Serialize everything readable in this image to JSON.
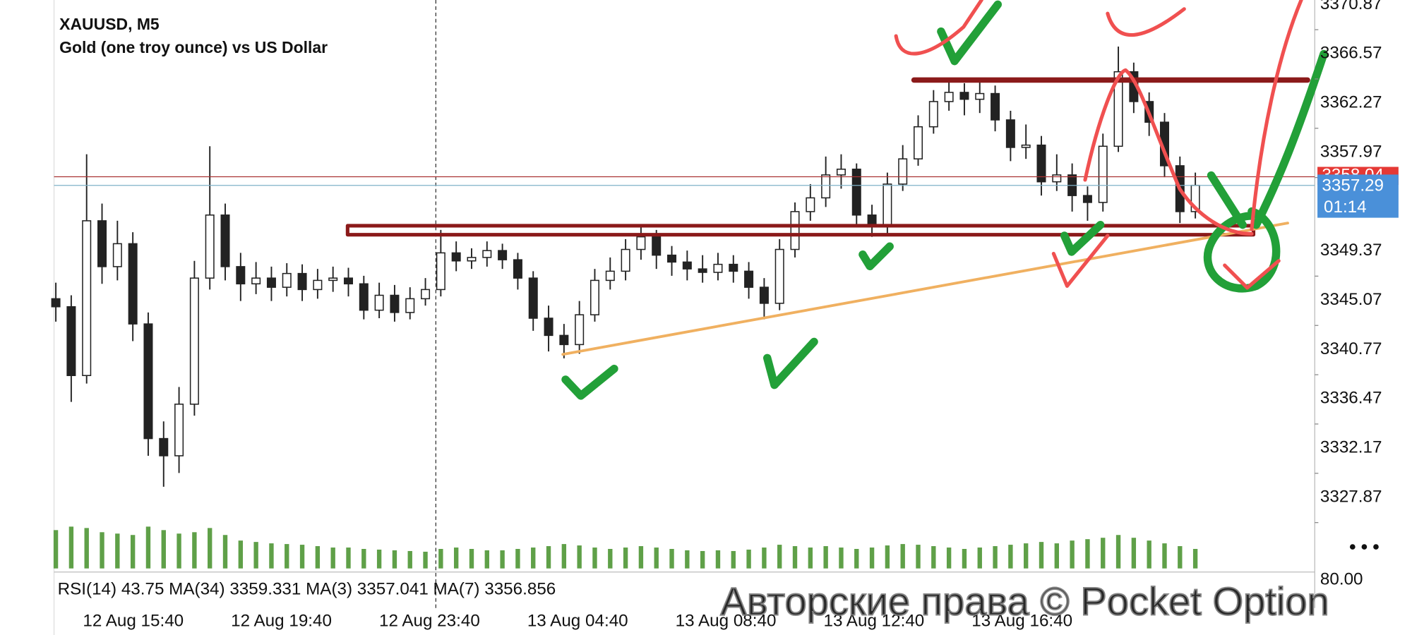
{
  "chart_data": {
    "type": "candlestick",
    "title": "XAUUSD, M5",
    "subtitle": "Gold (one troy ounce) vs US Dollar",
    "color": "#222222",
    "volume_color": "#5fa048",
    "xticks": [
      "12 Aug 15:40",
      "12 Aug 19:40",
      "12 Aug 23:40",
      "13 Aug 04:40",
      "13 Aug 08:40",
      "13 Aug 12:40",
      "13 Aug 16:40"
    ],
    "ylim": [
      3323.87,
      3373.46
    ],
    "yticks": [
      3370.87,
      3366.57,
      3362.27,
      3357.97,
      3349.37,
      3345.07,
      3340.77,
      3336.47,
      3332.17,
      3327.87
    ],
    "open": [
      3347.4,
      3346.7,
      3340.7,
      3354.2,
      3350.2,
      3352.2,
      3345.2,
      3335.2,
      3333.7,
      3338.2,
      3349.2,
      3354.7,
      3350.2,
      3348.7,
      3349.2,
      3348.4,
      3349.6,
      3348.2,
      3349,
      3349.2,
      3348.7,
      3346.4,
      3347.7,
      3346.2,
      3347.4,
      3348.2,
      3351.4,
      3350.7,
      3351,
      3351.6,
      3350.8,
      3349.2,
      3345.7,
      3344.2,
      3343.4,
      3346,
      3349,
      3349.8,
      3351.7,
      3352.8,
      3351.2,
      3350.6,
      3350,
      3349.7,
      3350.4,
      3349.8,
      3348.4,
      3347,
      3351.7,
      3355,
      3356.2,
      3358.2,
      3358.7,
      3354.7,
      3353.8,
      3357.4,
      3359.6,
      3362.4,
      3364.6,
      3365.4,
      3364.8,
      3365.3,
      3363,
      3360.6,
      3360.8,
      3357.6,
      3358.2,
      3356.4,
      3355.8,
      3360.7,
      3367.2,
      3364.6,
      3362.8,
      3359,
      3355
    ],
    "high": [
      3348.8,
      3347.7,
      3360,
      3355.7,
      3354.2,
      3353.2,
      3346.2,
      3336.7,
      3339.7,
      3350.7,
      3360.7,
      3355.7,
      3351.4,
      3350.6,
      3350.2,
      3350.5,
      3350.4,
      3350,
      3350.2,
      3350.1,
      3349.4,
      3348.8,
      3348.6,
      3348.4,
      3349.2,
      3353.4,
      3352.4,
      3351.8,
      3352.4,
      3352.2,
      3351.4,
      3349.8,
      3346.8,
      3345.2,
      3347.2,
      3350,
      3351,
      3352.6,
      3353.8,
      3353.4,
      3352,
      3351.6,
      3351.2,
      3351.4,
      3351.2,
      3350.6,
      3349.2,
      3352.6,
      3355.8,
      3357.4,
      3359.8,
      3360,
      3359.2,
      3355.6,
      3358.4,
      3360.8,
      3363.4,
      3365.6,
      3366.4,
      3366.2,
      3366.4,
      3366,
      3363.8,
      3362.6,
      3361.6,
      3360,
      3359.2,
      3357.2,
      3361.8,
      3369.4,
      3368,
      3365.4,
      3363.6,
      3359.8,
      3358.4
    ],
    "low": [
      3345.4,
      3338.4,
      3340,
      3348.7,
      3349,
      3343.7,
      3333.7,
      3331,
      3332.2,
      3337.2,
      3348.2,
      3349,
      3347.2,
      3347.8,
      3347.2,
      3347.6,
      3347.2,
      3347.4,
      3348,
      3347.6,
      3345.6,
      3345.7,
      3345.4,
      3345.6,
      3346.8,
      3347.6,
      3349.8,
      3350,
      3350.2,
      3350,
      3348.2,
      3344.6,
      3342.8,
      3342.2,
      3342.6,
      3345.4,
      3348.2,
      3349,
      3350.8,
      3350,
      3349.4,
      3349,
      3348.8,
      3349,
      3348.8,
      3347.4,
      3345.6,
      3346.4,
      3351,
      3354.2,
      3355.4,
      3357,
      3353.8,
      3352.8,
      3353,
      3356.8,
      3359,
      3361.8,
      3363.8,
      3363.4,
      3363.6,
      3362,
      3359.4,
      3359.6,
      3356.4,
      3356.8,
      3355,
      3354.2,
      3355,
      3360.2,
      3363.6,
      3361.6,
      3358,
      3354,
      3354.4
    ],
    "close": [
      3346.7,
      3340.7,
      3354.2,
      3350.2,
      3352.2,
      3345.2,
      3335.2,
      3333.7,
      3338.2,
      3349.2,
      3354.7,
      3350.2,
      3348.7,
      3349.2,
      3348.4,
      3349.6,
      3348.2,
      3349,
      3349.2,
      3348.7,
      3346.4,
      3347.7,
      3346.2,
      3347.4,
      3348.2,
      3351.4,
      3350.7,
      3351,
      3351.6,
      3350.8,
      3349.2,
      3345.7,
      3344.2,
      3343.4,
      3346,
      3349,
      3349.8,
      3351.7,
      3352.8,
      3351.2,
      3350.6,
      3350,
      3349.7,
      3350.4,
      3349.8,
      3348.4,
      3347,
      3351.7,
      3355,
      3356.2,
      3358.2,
      3358.7,
      3354.7,
      3353.8,
      3357.4,
      3359.6,
      3362.4,
      3364.6,
      3365.4,
      3364.8,
      3365.3,
      3363,
      3360.6,
      3360.8,
      3357.6,
      3358.2,
      3356.4,
      3355.8,
      3360.7,
      3367.2,
      3364.6,
      3362.8,
      3359,
      3355,
      3357.29
    ],
    "volume": [
      55,
      60,
      58,
      52,
      50,
      48,
      60,
      55,
      50,
      52,
      58,
      48,
      40,
      38,
      36,
      35,
      34,
      32,
      30,
      30,
      28,
      27,
      26,
      25,
      24,
      28,
      30,
      28,
      26,
      26,
      28,
      30,
      32,
      35,
      33,
      30,
      28,
      30,
      32,
      30,
      28,
      26,
      25,
      26,
      25,
      27,
      30,
      34,
      32,
      30,
      32,
      30,
      28,
      30,
      33,
      35,
      34,
      32,
      30,
      28,
      30,
      32,
      34,
      36,
      38,
      36,
      40,
      42,
      44,
      48,
      44,
      40,
      36,
      32,
      28
    ],
    "volume_lim": [
      0,
      80
    ],
    "ask": {
      "value": 3358.04,
      "color": "#e53935"
    },
    "bid": {
      "value": 3357.29,
      "color": "#4a90d9"
    },
    "timer": "01:14",
    "indicator_label": "RSI(14) 43.75 MA(34) 3359.331 MA(3) 3357.041 MA(7) 3356.856",
    "indicator_ticks": [
      {
        "value": 80,
        "label": "80.00"
      }
    ],
    "watermark": "Авторские права © Pocket Option"
  }
}
